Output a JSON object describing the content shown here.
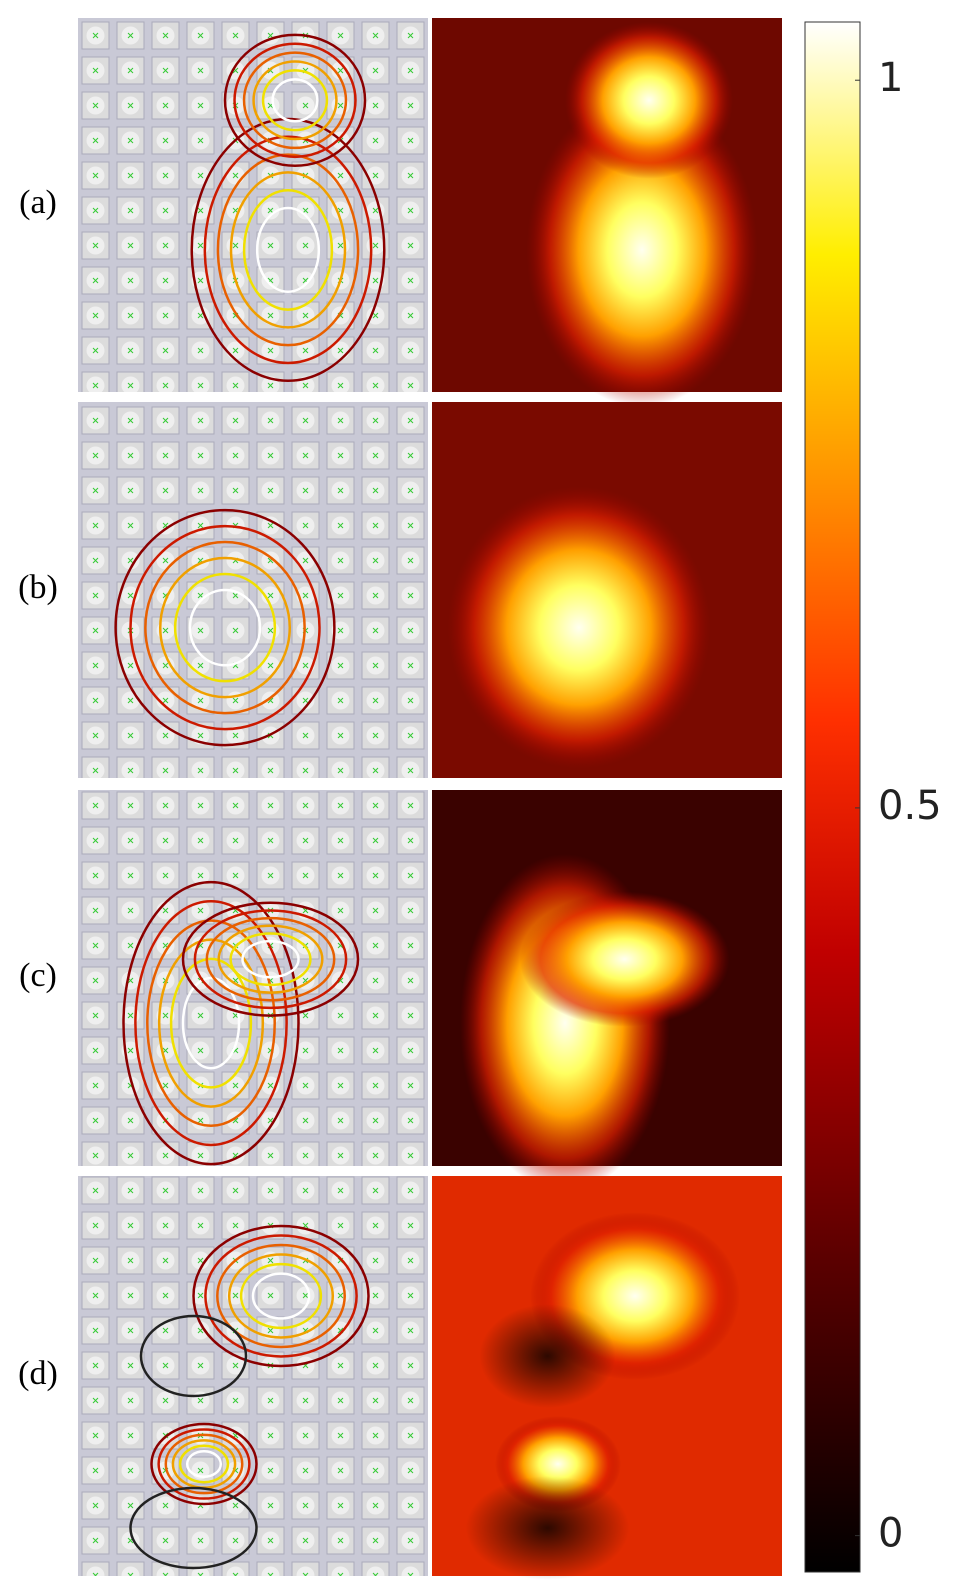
{
  "chart_data": {
    "type": "heatmap",
    "panels": [
      "(a)",
      "(b)",
      "(c)",
      "(d)"
    ],
    "ylim": [
      -0.025,
      1.04
    ],
    "yticks": [
      0,
      0.5,
      1
    ]
  }
}
